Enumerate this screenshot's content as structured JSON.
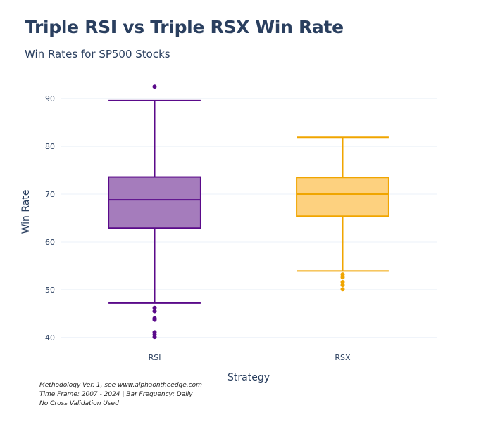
{
  "header": {
    "title": "Triple RSI vs Triple RSX Win Rate",
    "subtitle": "Win Rates for SP500 Stocks"
  },
  "footnotes": [
    "Methodology Ver. 1, see www.alphaontheedge.com",
    "Time Frame: 2007 - 2024 | Bar Frequency: Daily",
    "No Cross Validation Used"
  ],
  "chart_data": {
    "type": "box",
    "title": "Triple RSI vs Triple RSX Win Rate",
    "subtitle": "Win Rates for SP500 Stocks",
    "xlabel": "Strategy",
    "ylabel": "Win Rate",
    "ylim": [
      38.5,
      94
    ],
    "yticks": [
      40,
      50,
      60,
      70,
      80,
      90
    ],
    "grid": true,
    "categories": [
      "RSI",
      "RSX"
    ],
    "series": [
      {
        "name": "RSI",
        "color": "#5a0a8a",
        "fill": "#a57cbc",
        "whisker_low": 47.2,
        "q1": 62.9,
        "median": 68.8,
        "q3": 73.6,
        "whisker_high": 89.6,
        "outliers": [
          92.5,
          46.2,
          45.5,
          44.0,
          43.7,
          41.1,
          40.6,
          40.1
        ]
      },
      {
        "name": "RSX",
        "color": "#f0a500",
        "fill": "#fdd17f",
        "whisker_low": 53.9,
        "q1": 65.4,
        "median": 70.0,
        "q3": 73.5,
        "whisker_high": 81.9,
        "outliers": [
          53.2,
          52.6,
          51.6,
          51.0,
          50.1
        ]
      }
    ]
  }
}
